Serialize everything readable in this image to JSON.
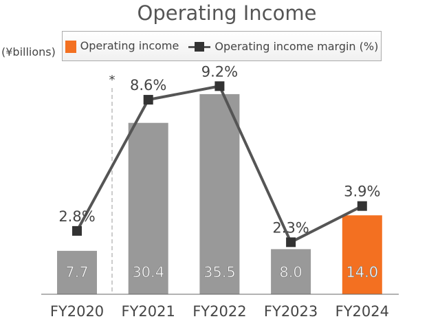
{
  "chart_data": {
    "type": "bar",
    "title": "Operating Income",
    "unit_label": "(¥billions)",
    "categories": [
      "FY2020",
      "FY2021",
      "FY2022",
      "FY2023",
      "FY2024"
    ],
    "series": [
      {
        "name": "Operating income",
        "type": "bar",
        "values": [
          7.7,
          30.4,
          35.5,
          8.0,
          14.0
        ],
        "labels": [
          "7.7",
          "30.4",
          "35.5",
          "8.0",
          "14.0"
        ],
        "colors": [
          "#999999",
          "#999999",
          "#999999",
          "#999999",
          "#f37021"
        ]
      },
      {
        "name": "Operating income margin (%)",
        "type": "line",
        "values": [
          2.8,
          8.6,
          9.2,
          2.3,
          3.9
        ],
        "labels": [
          "2.8%",
          "8.6%",
          "9.2%",
          "2.3%",
          "3.9%"
        ],
        "color": "#555555",
        "marker_color": "#333333"
      }
    ],
    "annotation": "*",
    "legend": "top",
    "grid": false
  }
}
